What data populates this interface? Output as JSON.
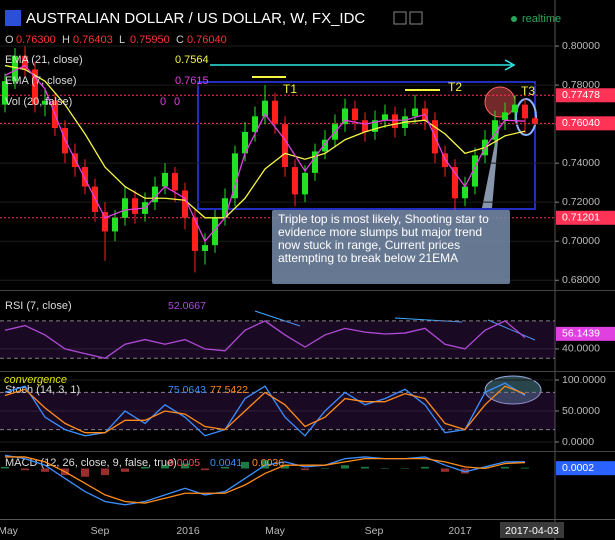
{
  "header": {
    "symbol": "AUSTRALIAN DOLLAR / US DOLLAR, W, FX_IDC",
    "status": "realtime",
    "ohlc": [
      {
        "key": "O",
        "text": "0.76300"
      },
      {
        "key": "H",
        "text": "0.76403"
      },
      {
        "key": "L",
        "text": "0.75950"
      },
      {
        "key": "C",
        "text": "0.76040"
      }
    ]
  },
  "x_axis": {
    "labels": [
      "May",
      "Sep",
      "2016",
      "May",
      "Sep",
      "2017"
    ],
    "current": "2017-04-03"
  },
  "annotations": {
    "tops": [
      "T1",
      "T2",
      "T3"
    ],
    "comment": "Triple top is most likely, Shooting star to evidence more slumps but major trend now stuck in range, Current prices attempting to break below 21EMA",
    "note": "convergence"
  },
  "chart_data": [
    {
      "type": "candlestick",
      "candles": [
        [
          0.77,
          0.786,
          0.766,
          0.782
        ],
        [
          0.782,
          0.799,
          0.778,
          0.795
        ],
        [
          0.795,
          0.8,
          0.784,
          0.788
        ],
        [
          0.788,
          0.792,
          0.766,
          0.77
        ],
        [
          0.77,
          0.778,
          0.764,
          0.772
        ],
        [
          0.772,
          0.776,
          0.754,
          0.758
        ],
        [
          0.758,
          0.762,
          0.74,
          0.745
        ],
        [
          0.745,
          0.75,
          0.733,
          0.738
        ],
        [
          0.738,
          0.742,
          0.724,
          0.728
        ],
        [
          0.728,
          0.732,
          0.71,
          0.715
        ],
        [
          0.715,
          0.72,
          0.69,
          0.705
        ],
        [
          0.705,
          0.716,
          0.7,
          0.712
        ],
        [
          0.712,
          0.728,
          0.708,
          0.722
        ],
        [
          0.722,
          0.726,
          0.709,
          0.714
        ],
        [
          0.714,
          0.725,
          0.71,
          0.72
        ],
        [
          0.72,
          0.733,
          0.716,
          0.728
        ],
        [
          0.728,
          0.74,
          0.724,
          0.735
        ],
        [
          0.735,
          0.738,
          0.72,
          0.726
        ],
        [
          0.726,
          0.73,
          0.706,
          0.712
        ],
        [
          0.712,
          0.716,
          0.684,
          0.695
        ],
        [
          0.695,
          0.704,
          0.688,
          0.698
        ],
        [
          0.698,
          0.716,
          0.694,
          0.712
        ],
        [
          0.712,
          0.727,
          0.708,
          0.722
        ],
        [
          0.722,
          0.749,
          0.718,
          0.745
        ],
        [
          0.745,
          0.761,
          0.741,
          0.756
        ],
        [
          0.756,
          0.769,
          0.751,
          0.764
        ],
        [
          0.764,
          0.78,
          0.76,
          0.772
        ],
        [
          0.772,
          0.776,
          0.755,
          0.76
        ],
        [
          0.76,
          0.764,
          0.733,
          0.738
        ],
        [
          0.738,
          0.742,
          0.718,
          0.724
        ],
        [
          0.724,
          0.739,
          0.72,
          0.735
        ],
        [
          0.735,
          0.75,
          0.731,
          0.746
        ],
        [
          0.746,
          0.757,
          0.742,
          0.752
        ],
        [
          0.752,
          0.765,
          0.748,
          0.76
        ],
        [
          0.76,
          0.773,
          0.756,
          0.768
        ],
        [
          0.768,
          0.772,
          0.757,
          0.762
        ],
        [
          0.762,
          0.766,
          0.751,
          0.756
        ],
        [
          0.756,
          0.767,
          0.752,
          0.762
        ],
        [
          0.762,
          0.77,
          0.758,
          0.765
        ],
        [
          0.765,
          0.769,
          0.753,
          0.758
        ],
        [
          0.758,
          0.768,
          0.754,
          0.764
        ],
        [
          0.764,
          0.775,
          0.76,
          0.768
        ],
        [
          0.768,
          0.772,
          0.757,
          0.762
        ],
        [
          0.762,
          0.766,
          0.74,
          0.745
        ],
        [
          0.745,
          0.749,
          0.733,
          0.738
        ],
        [
          0.738,
          0.742,
          0.716,
          0.722
        ],
        [
          0.722,
          0.733,
          0.718,
          0.728
        ],
        [
          0.728,
          0.748,
          0.724,
          0.744
        ],
        [
          0.744,
          0.757,
          0.74,
          0.752
        ],
        [
          0.752,
          0.767,
          0.748,
          0.762
        ],
        [
          0.762,
          0.771,
          0.757,
          0.766
        ],
        [
          0.766,
          0.7748,
          0.762,
          0.77
        ],
        [
          0.77,
          0.773,
          0.755,
          0.763
        ],
        [
          0.763,
          0.76403,
          0.7595,
          0.7604
        ]
      ],
      "up_color": "#22e022",
      "down_color": "#ff1f1f",
      "series": [
        {
          "name": "EMA (21, close)",
          "color": "#f5f542",
          "last_label": "0.7564",
          "values": [
            0.79,
            0.788,
            0.782,
            0.77,
            0.755,
            0.738,
            0.728,
            0.722,
            0.722,
            0.721,
            0.712,
            0.712,
            0.722,
            0.737,
            0.745,
            0.742,
            0.745,
            0.752,
            0.756,
            0.759,
            0.761,
            0.762,
            0.755,
            0.745,
            0.748,
            0.754,
            0.7564
          ]
        },
        {
          "name": "EMA (7, close)",
          "color": "#e040e0",
          "last_label": "0.7615",
          "values": [
            0.785,
            0.79,
            0.778,
            0.752,
            0.732,
            0.712,
            0.716,
            0.717,
            0.728,
            0.722,
            0.7,
            0.712,
            0.745,
            0.765,
            0.752,
            0.736,
            0.75,
            0.762,
            0.76,
            0.762,
            0.762,
            0.765,
            0.742,
            0.728,
            0.748,
            0.762,
            0.7615
          ]
        }
      ],
      "studies": [
        {
          "name": "Vol (20, false)",
          "labels": [
            "0",
            "0"
          ]
        }
      ],
      "levels": [
        {
          "value": 0.77478,
          "label": "0.77478"
        },
        {
          "value": 0.7604,
          "label": "0.76040"
        },
        {
          "value": 0.71201,
          "label": "0.71201"
        }
      ],
      "level_color": "#ff3355",
      "ylim": [
        0.675,
        0.8236
      ],
      "yticks": [
        {
          "value": 0.68,
          "label": "0.68000"
        },
        {
          "value": 0.7,
          "label": "0.70000"
        },
        {
          "value": 0.72,
          "label": "0.72000"
        },
        {
          "value": 0.74,
          "label": "0.74000"
        },
        {
          "value": 0.76,
          "label": "0.76000"
        },
        {
          "value": 0.78,
          "label": "0.78000"
        },
        {
          "value": 0.8,
          "label": "0.80000"
        }
      ]
    },
    {
      "type": "line",
      "name": "RSI (7, close)",
      "series": [
        {
          "name": "RSI",
          "color": "#b04ad8",
          "last_label": "52.0667",
          "values": [
            60,
            65,
            55,
            40,
            35,
            30,
            45,
            50,
            45,
            50,
            40,
            38,
            60,
            70,
            55,
            42,
            55,
            62,
            58,
            56,
            57,
            62,
            45,
            40,
            60,
            70,
            52.0667
          ]
        }
      ],
      "bands": [
        30,
        70
      ],
      "ylim": [
        17.4,
        101
      ],
      "yticks": [
        {
          "value": 40,
          "label": "40.0000"
        }
      ],
      "marker": {
        "value": 56.1439,
        "label": "56.1439",
        "color": "#e040e0"
      }
    },
    {
      "type": "line",
      "name": "Stoch (14, 3, 1)",
      "series": [
        {
          "name": "%K",
          "color": "#3b8fff",
          "last_label": "75.0643",
          "values": [
            80,
            90,
            40,
            20,
            10,
            15,
            50,
            30,
            60,
            40,
            10,
            20,
            70,
            90,
            40,
            10,
            50,
            80,
            60,
            70,
            85,
            60,
            15,
            20,
            80,
            95,
            75.0643
          ]
        },
        {
          "name": "%D",
          "color": "#ff8c1a",
          "last_label": "77.5422",
          "values": [
            75,
            85,
            55,
            30,
            15,
            15,
            35,
            35,
            50,
            45,
            25,
            20,
            50,
            80,
            60,
            25,
            40,
            70,
            65,
            65,
            78,
            70,
            30,
            20,
            60,
            90,
            77.5422
          ]
        }
      ],
      "bands": [
        20,
        80
      ],
      "ylim": [
        -12.9,
        112.9
      ],
      "yticks": [
        {
          "value": 0,
          "label": "0.0000"
        },
        {
          "value": 50,
          "label": "50.0000"
        },
        {
          "value": 100,
          "label": "100.0000"
        }
      ]
    },
    {
      "type": "line",
      "name": "MACD (12, 26, close, 9, false, true)",
      "series": [
        {
          "name": "Histogram",
          "style": "histogram",
          "color": "#ff4d4d",
          "up_color": "#2ecc71",
          "last_label": "0.0005",
          "values": [
            0.001,
            -0.001,
            -0.002,
            -0.004,
            -0.005,
            -0.004,
            -0.002,
            0.001,
            0.002,
            0.003,
            -0.001,
            0.001,
            0.004,
            0.005,
            0.002,
            -0.001,
            0,
            0.002,
            0.001,
            0,
            0,
            0.001,
            -0.002,
            -0.003,
            0.001,
            0.001,
            0.0005
          ]
        },
        {
          "name": "MACD",
          "color": "#3b8fff",
          "last_label": "0.0041",
          "values": [
            0.008,
            0.006,
            0.002,
            -0.006,
            -0.014,
            -0.02,
            -0.022,
            -0.02,
            -0.016,
            -0.012,
            -0.016,
            -0.014,
            -0.006,
            0.002,
            0.004,
            0.001,
            0.002,
            0.006,
            0.007,
            0.006,
            0.006,
            0.007,
            0.002,
            -0.002,
            0.001,
            0.004,
            0.0041
          ]
        },
        {
          "name": "Signal",
          "color": "#ff8c1a",
          "last_label": "0.0036",
          "values": [
            0.007,
            0.007,
            0.004,
            -0.002,
            -0.009,
            -0.016,
            -0.02,
            -0.021,
            -0.018,
            -0.015,
            -0.015,
            -0.015,
            -0.01,
            -0.003,
            0.002,
            0.002,
            0.002,
            0.004,
            0.006,
            0.006,
            0.006,
            0.006,
            0.004,
            0.001,
            0,
            0.003,
            0.0036
          ]
        }
      ],
      "ylim": [
        -0.03,
        0.01
      ],
      "yticks": [],
      "marker": {
        "value": 0.0002,
        "label": "0.0002",
        "color": "#2962ff"
      }
    }
  ]
}
